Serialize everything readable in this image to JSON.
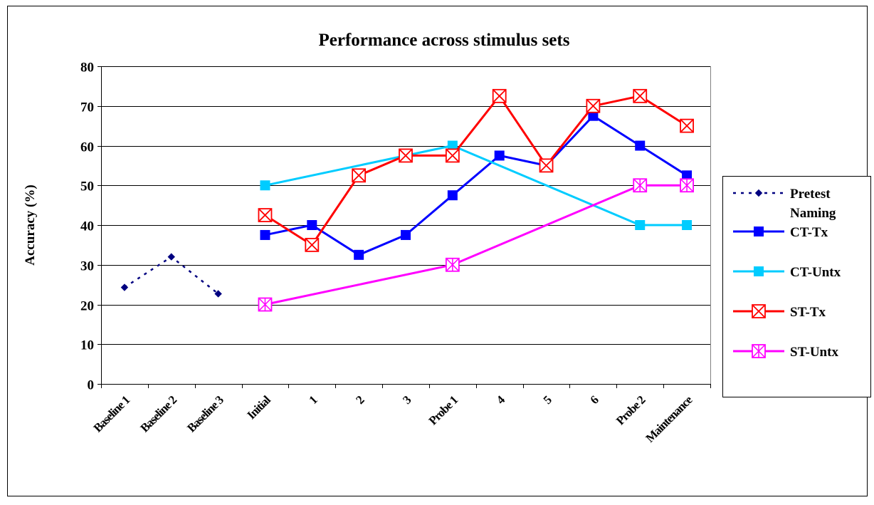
{
  "chart_data": {
    "type": "line",
    "title": "Performance across stimulus sets",
    "ylabel": "Accuracy (%)",
    "xlabel": "",
    "ylim": [
      0,
      80
    ],
    "yticks": [
      0,
      10,
      20,
      30,
      40,
      50,
      60,
      70,
      80
    ],
    "ytick_labels": [
      "0",
      "10",
      "20",
      "30",
      "40",
      "50",
      "60",
      "70",
      "80"
    ],
    "grid": "horizontal",
    "legend": "right",
    "categories": [
      "Baseline 1",
      "Baseline 2",
      "Baseline 3",
      "Initial",
      "1",
      "2",
      "3",
      "Probe 1",
      "4",
      "5",
      "6",
      "Probe 2",
      "Maintenance"
    ],
    "series": [
      {
        "name": "Pretest Naming",
        "color": "#000080",
        "marker": "diamond",
        "line_style": "dotted",
        "values": [
          24.3,
          32,
          22.7,
          null,
          null,
          null,
          null,
          null,
          null,
          null,
          null,
          null,
          null
        ]
      },
      {
        "name": "CT-Tx",
        "color": "#0000FF",
        "marker": "square",
        "line_style": "solid",
        "values": [
          null,
          null,
          null,
          37.5,
          40,
          32.5,
          37.5,
          47.5,
          57.5,
          55,
          67.5,
          60,
          52.5
        ]
      },
      {
        "name": "CT-Untx",
        "color": "#00CCFF",
        "marker": "square",
        "line_style": "solid",
        "values": [
          null,
          null,
          null,
          50,
          null,
          null,
          null,
          60,
          null,
          null,
          null,
          40,
          40
        ]
      },
      {
        "name": "ST-Tx",
        "color": "#FF0000",
        "marker": "x-square",
        "line_style": "solid",
        "values": [
          null,
          null,
          null,
          42.5,
          35,
          52.5,
          57.5,
          57.5,
          72.5,
          55,
          70,
          72.5,
          65
        ]
      },
      {
        "name": "ST-Untx",
        "color": "#FF00FF",
        "marker": "star-square",
        "line_style": "solid",
        "values": [
          null,
          null,
          null,
          20,
          null,
          null,
          null,
          30,
          null,
          null,
          null,
          50,
          50
        ]
      }
    ]
  }
}
